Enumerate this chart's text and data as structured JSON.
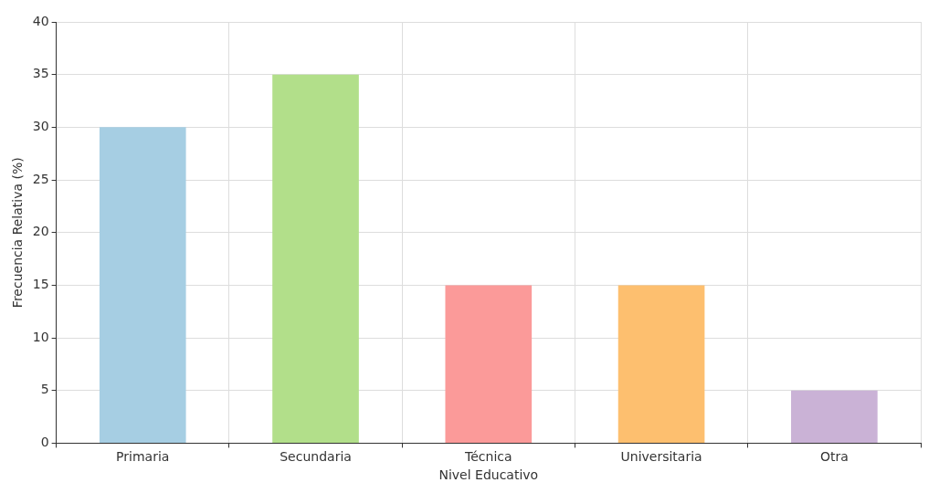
{
  "chart_data": {
    "type": "bar",
    "xlabel": "Nivel Educativo",
    "ylabel": "Frecuencia Relativa (%)",
    "categories": [
      "Primaria",
      "Secundaria",
      "Técnica",
      "Universitaria",
      "Otra"
    ],
    "values": [
      30,
      35,
      15,
      15,
      5
    ],
    "colors": [
      "#a6cee3",
      "#b2df8a",
      "#fb9a99",
      "#fdbf6f",
      "#cab2d6"
    ],
    "ylim": [
      0,
      40
    ],
    "yticks": [
      0,
      5,
      10,
      15,
      20,
      25,
      30,
      35,
      40
    ],
    "grid": true
  }
}
